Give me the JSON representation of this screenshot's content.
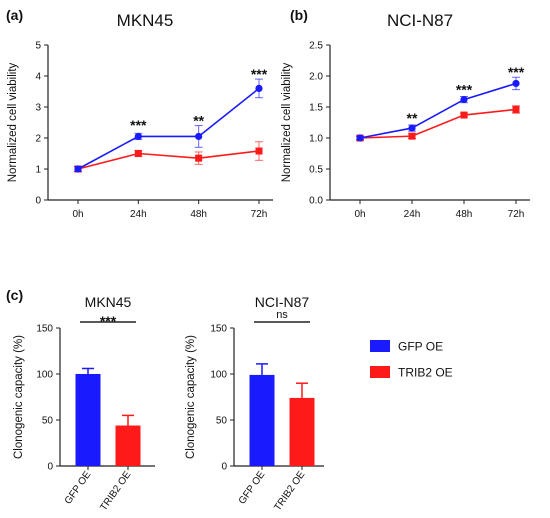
{
  "panels": {
    "a": "(a)",
    "b": "(b)",
    "c": "(c)"
  },
  "colors": {
    "gfp": "#1a1aff",
    "trib2": "#ff1a1a",
    "axis": "#222222"
  },
  "legend": [
    {
      "name": "GFP OE",
      "color": "#1a1aff"
    },
    {
      "name": "TRIB2 OE",
      "color": "#ff1a1a"
    }
  ],
  "chart_data": [
    {
      "type": "line",
      "title": "MKN45",
      "ylabel": "Normalized cell viability",
      "xlabel": "",
      "categories": [
        "0h",
        "24h",
        "48h",
        "72h"
      ],
      "ylim": [
        0,
        5
      ],
      "yticks": [
        "0",
        "1",
        "2",
        "3",
        "4",
        "5"
      ],
      "yticks_values": [
        0,
        1,
        2,
        3,
        4,
        5
      ],
      "series": [
        {
          "name": "GFP OE",
          "values": [
            1.0,
            2.05,
            2.05,
            3.6
          ],
          "errors": [
            0.08,
            0.1,
            0.35,
            0.3
          ],
          "marker": "circle",
          "color": "#1a1aff"
        },
        {
          "name": "TRIB2 OE",
          "values": [
            1.0,
            1.5,
            1.35,
            1.58
          ],
          "errors": [
            0.08,
            0.1,
            0.2,
            0.3
          ],
          "marker": "square",
          "color": "#ff1a1a"
        }
      ],
      "annotations": [
        {
          "x": "24h",
          "text": "***",
          "y": 2.45
        },
        {
          "x": "48h",
          "text": "**",
          "y": 2.6
        },
        {
          "x": "72h",
          "text": "***",
          "y": 4.1
        }
      ]
    },
    {
      "type": "line",
      "title": "NCI-N87",
      "ylabel": "Normalized cell viability",
      "xlabel": "",
      "categories": [
        "0h",
        "24h",
        "48h",
        "72h"
      ],
      "ylim": [
        0,
        2.5
      ],
      "yticks": [
        "0.0",
        "0.5",
        "1.0",
        "1.5",
        "2.0",
        "2.5"
      ],
      "yticks_values": [
        0,
        0.5,
        1.0,
        1.5,
        2.0,
        2.5
      ],
      "series": [
        {
          "name": "GFP OE",
          "values": [
            1.0,
            1.16,
            1.62,
            1.88
          ],
          "errors": [
            0.03,
            0.05,
            0.05,
            0.1
          ],
          "marker": "circle",
          "color": "#1a1aff"
        },
        {
          "name": "TRIB2 OE",
          "values": [
            1.0,
            1.03,
            1.37,
            1.46
          ],
          "errors": [
            0.03,
            0.04,
            0.03,
            0.06
          ],
          "marker": "square",
          "color": "#ff1a1a"
        }
      ],
      "annotations": [
        {
          "x": "24h",
          "text": "**",
          "y": 1.34
        },
        {
          "x": "48h",
          "text": "***",
          "y": 1.8
        },
        {
          "x": "72h",
          "text": "***",
          "y": 2.08
        }
      ]
    },
    {
      "type": "bar",
      "title": "MKN45",
      "ylabel": "Clonogenic capacity (%)",
      "xlabel": "",
      "categories": [
        "GFP OE",
        "TRIB2 OE"
      ],
      "ylim": [
        0,
        150
      ],
      "yticks": [
        "0",
        "50",
        "100",
        "150"
      ],
      "yticks_values": [
        0,
        50,
        100,
        150
      ],
      "values": [
        100,
        44
      ],
      "errors": [
        6,
        11
      ],
      "colors": [
        "#1a1aff",
        "#ff1a1a"
      ],
      "significance": "***"
    },
    {
      "type": "bar",
      "title": "NCI-N87",
      "ylabel": "Clonogenic capacity (%)",
      "xlabel": "",
      "categories": [
        "GFP OE",
        "TRIB2 OE"
      ],
      "ylim": [
        0,
        150
      ],
      "yticks": [
        "0",
        "50",
        "100",
        "150"
      ],
      "yticks_values": [
        0,
        50,
        100,
        150
      ],
      "values": [
        99,
        74
      ],
      "errors": [
        12,
        16
      ],
      "colors": [
        "#1a1aff",
        "#ff1a1a"
      ],
      "significance": "ns"
    }
  ]
}
